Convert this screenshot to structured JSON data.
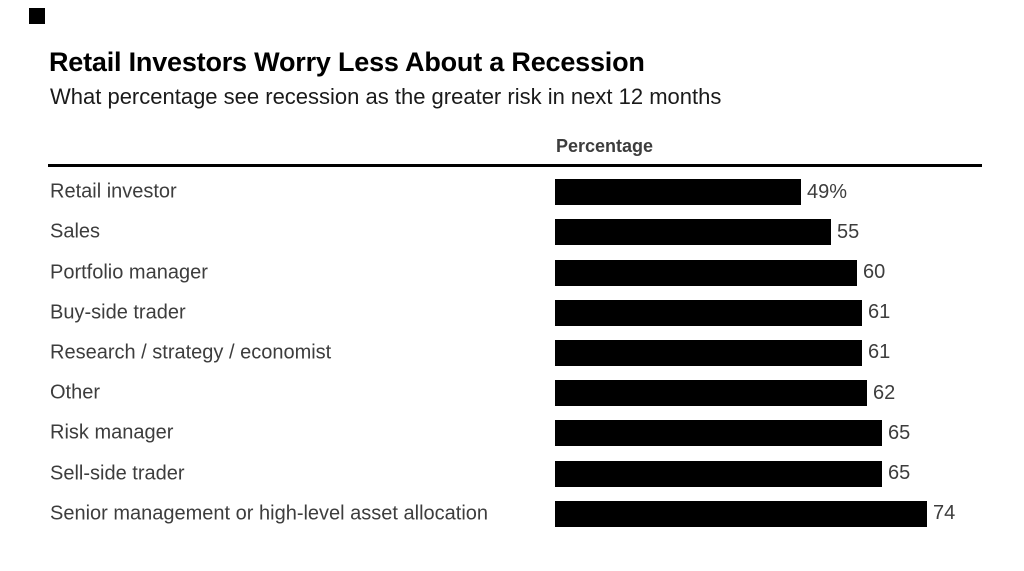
{
  "brand": {
    "mark": "black-square",
    "color": "#000000"
  },
  "header": {
    "title": "Retail Investors Worry Less About a Recession",
    "subtitle": "What percentage see recession as the greater risk in next 12 months"
  },
  "chart_data": {
    "type": "bar",
    "orientation": "horizontal",
    "title": "Retail Investors Worry Less About a Recession",
    "subtitle": "What percentage see recession as the greater risk in next 12 months",
    "column_header": "Percentage",
    "categories": [
      "Retail investor",
      "Sales",
      "Portfolio manager",
      "Buy-side trader",
      "Research / strategy / economist",
      "Other",
      "Risk manager",
      "Sell-side trader",
      "Senior management or high-level asset allocation"
    ],
    "values": [
      49,
      55,
      60,
      61,
      61,
      62,
      65,
      65,
      74
    ],
    "value_labels": [
      "49%",
      "55",
      "60",
      "61",
      "61",
      "62",
      "65",
      "65",
      "74"
    ],
    "xlabel": "",
    "ylabel": "",
    "xlim": [
      0,
      74
    ],
    "grid": false,
    "legend": "none",
    "bar_color": "#000000",
    "text_color": "#3d3d3d"
  }
}
